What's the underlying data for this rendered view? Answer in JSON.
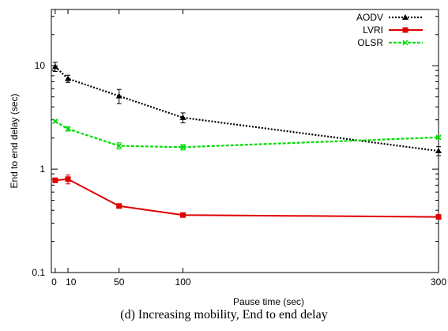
{
  "chart_data": {
    "type": "line",
    "title": "",
    "xlabel": "Pause time (sec)",
    "ylabel": "End to end delay (sec)",
    "x_ticks": [
      0,
      10,
      50,
      100,
      300
    ],
    "y_ticks": [
      0.1,
      1,
      10
    ],
    "y_tick_labels": [
      "0.1",
      "1",
      "10"
    ],
    "xlim": [
      -3,
      300
    ],
    "ylim": [
      0.1,
      35
    ],
    "y_scale": "log",
    "grid": false,
    "legend_position": "top-right",
    "series": [
      {
        "name": "AODV",
        "color": "#000000",
        "line_style": "dotted",
        "marker": "triangle",
        "x": [
          0,
          10,
          50,
          100,
          300
        ],
        "y": [
          9.8,
          7.5,
          5.1,
          3.15,
          1.5
        ],
        "err": [
          1.0,
          0.6,
          0.8,
          0.35,
          0.15
        ]
      },
      {
        "name": "LVRI",
        "color": "#e00000",
        "line_style": "solid",
        "marker": "square",
        "x": [
          0,
          10,
          50,
          100,
          300
        ],
        "y": [
          0.78,
          0.8,
          0.44,
          0.36,
          0.345
        ],
        "err": [
          0.04,
          0.08,
          0.02,
          0.015,
          0.01
        ]
      },
      {
        "name": "OLSR",
        "color": "#00dd00",
        "line_style": "dashed",
        "marker": "x",
        "x": [
          0,
          10,
          50,
          100,
          300
        ],
        "y": [
          2.9,
          2.45,
          1.68,
          1.63,
          2.03
        ],
        "err": [
          0.08,
          0.12,
          0.12,
          0.1,
          0.05
        ]
      }
    ]
  },
  "caption": "(d) Increasing mobility, End to end delay"
}
